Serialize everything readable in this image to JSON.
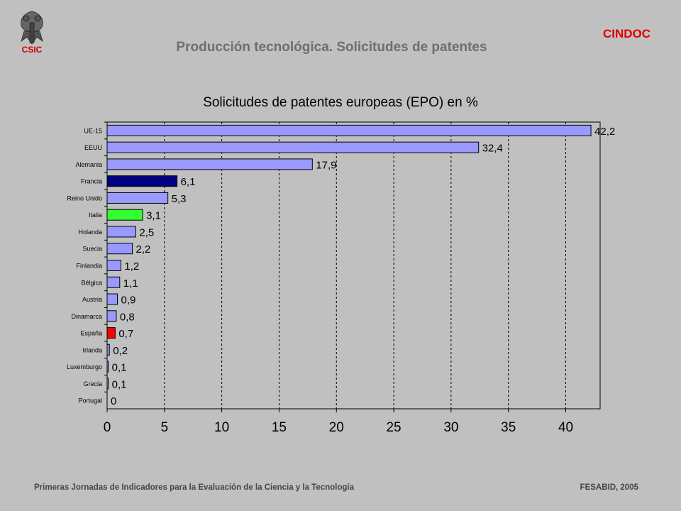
{
  "header": {
    "title": "Producción tecnológica. Solicitudes de patentes",
    "org_label": "CINDOC",
    "logo_text": "CSIC"
  },
  "footer": {
    "left": "Primeras Jornadas de Indicadores para la Evaluación de la Ciencia y la Tecnología",
    "right": "FESABID, 2005"
  },
  "colors": {
    "default_bar": "#9999ff",
    "highlight_francia": "#000080",
    "highlight_italia": "#33ff33",
    "highlight_espana": "#ff0000",
    "accent": "#e00000"
  },
  "chart_data": {
    "type": "bar",
    "orientation": "horizontal",
    "title": "Solicitudes de patentes europeas (EPO) en %",
    "categories": [
      "UE-15",
      "EEUU",
      "Alemania",
      "Francia",
      "Reino Unido",
      "Italia",
      "Holanda",
      "Suecia",
      "Finlandia",
      "Bélgica",
      "Austria",
      "Dinamarca",
      "España",
      "Irlanda",
      "Luxemburgo",
      "Grecia",
      "Portugal"
    ],
    "values": [
      42.2,
      32.4,
      17.9,
      6.1,
      5.3,
      3.1,
      2.5,
      2.2,
      1.2,
      1.1,
      0.9,
      0.8,
      0.7,
      0.2,
      0.1,
      0.1,
      0
    ],
    "value_labels": [
      "42,2",
      "32,4",
      "17,9",
      "6,1",
      "5,3",
      "3,1",
      "2,5",
      "2,2",
      "1,2",
      "1,1",
      "0,9",
      "0,8",
      "0,7",
      "0,2",
      "0,1",
      "0,1",
      "0"
    ],
    "bar_colors": [
      "#9999ff",
      "#9999ff",
      "#9999ff",
      "#000080",
      "#9999ff",
      "#33ff33",
      "#9999ff",
      "#9999ff",
      "#9999ff",
      "#9999ff",
      "#9999ff",
      "#9999ff",
      "#ff0000",
      "#9999ff",
      "#9999ff",
      "#9999ff",
      "#9999ff"
    ],
    "xlim": [
      0,
      43
    ],
    "xticks": [
      0,
      5,
      10,
      15,
      20,
      25,
      30,
      35,
      40
    ],
    "grid": "vertical dashed",
    "legend": "none"
  }
}
